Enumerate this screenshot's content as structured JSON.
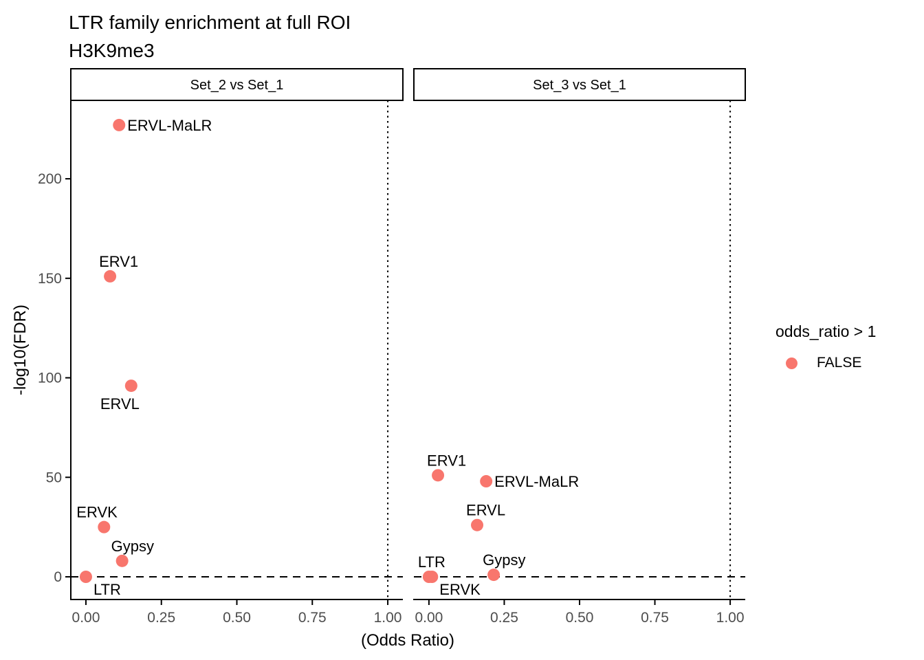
{
  "title": {
    "line1": "LTR family enrichment at full ROI",
    "line2": "H3K9me3"
  },
  "axes": {
    "x_title": "(Odds Ratio)",
    "y_title": "-log10(FDR)",
    "x_ticks": [
      0,
      0.25,
      0.5,
      0.75,
      1.0
    ],
    "x_tick_labels": [
      "0.00",
      "0.25",
      "0.50",
      "0.75",
      "1.00"
    ],
    "y_ticks": [
      0,
      50,
      100,
      150,
      200
    ],
    "y_tick_labels": [
      "0",
      "50",
      "100",
      "150",
      "200"
    ]
  },
  "legend": {
    "title": "odds_ratio > 1",
    "items": [
      {
        "label": "FALSE",
        "color": "#F8766D"
      }
    ],
    "position": "right"
  },
  "colors": {
    "point": "#F8766D",
    "axis_text": "#4D4D4D",
    "line": "#000000",
    "strip_background": "#FFFFFF",
    "strip_border": "#000000"
  },
  "chart_data": {
    "type": "scatter",
    "title": "LTR family enrichment at full ROI",
    "subtitle": "H3K9me3",
    "xlabel": "(Odds Ratio)",
    "ylabel": "-log10(FDR)",
    "xlim": [
      -0.05,
      1.05
    ],
    "ylim": [
      -11.4,
      239.4
    ],
    "grid": false,
    "legend_position": "right",
    "reference_lines": {
      "hline_y": 0,
      "vline_x": 1.0,
      "hline_style": "dashed",
      "vline_style": "dotted"
    },
    "facets": [
      {
        "label": "Set_2 vs Set_1",
        "points": [
          {
            "name": "ERVL-MaLR",
            "odds_ratio": 0.11,
            "neg_log10_fdr": 227,
            "label_pos": "right"
          },
          {
            "name": "ERV1",
            "odds_ratio": 0.08,
            "neg_log10_fdr": 151,
            "label_pos": "above"
          },
          {
            "name": "ERVL",
            "odds_ratio": 0.15,
            "neg_log10_fdr": 96,
            "label_pos": "below-left"
          },
          {
            "name": "ERVK",
            "odds_ratio": 0.06,
            "neg_log10_fdr": 25,
            "label_pos": "above-left"
          },
          {
            "name": "Gypsy",
            "odds_ratio": 0.12,
            "neg_log10_fdr": 8,
            "label_pos": "above"
          },
          {
            "name": "LTR",
            "odds_ratio": 0.0,
            "neg_log10_fdr": 0,
            "label_pos": "below-right"
          }
        ]
      },
      {
        "label": "Set_3 vs Set_1",
        "points": [
          {
            "name": "ERV1",
            "odds_ratio": 0.03,
            "neg_log10_fdr": 51,
            "label_pos": "above"
          },
          {
            "name": "ERVL-MaLR",
            "odds_ratio": 0.19,
            "neg_log10_fdr": 48,
            "label_pos": "right"
          },
          {
            "name": "ERVL",
            "odds_ratio": 0.16,
            "neg_log10_fdr": 26,
            "label_pos": "above"
          },
          {
            "name": "LTR",
            "odds_ratio": 0.0,
            "neg_log10_fdr": 0,
            "label_pos": "above"
          },
          {
            "name": "Gypsy",
            "odds_ratio": 0.215,
            "neg_log10_fdr": 1,
            "label_pos": "above"
          },
          {
            "name": "ERVK",
            "odds_ratio": 0.01,
            "neg_log10_fdr": 0,
            "label_pos": "below-right"
          }
        ]
      }
    ]
  }
}
